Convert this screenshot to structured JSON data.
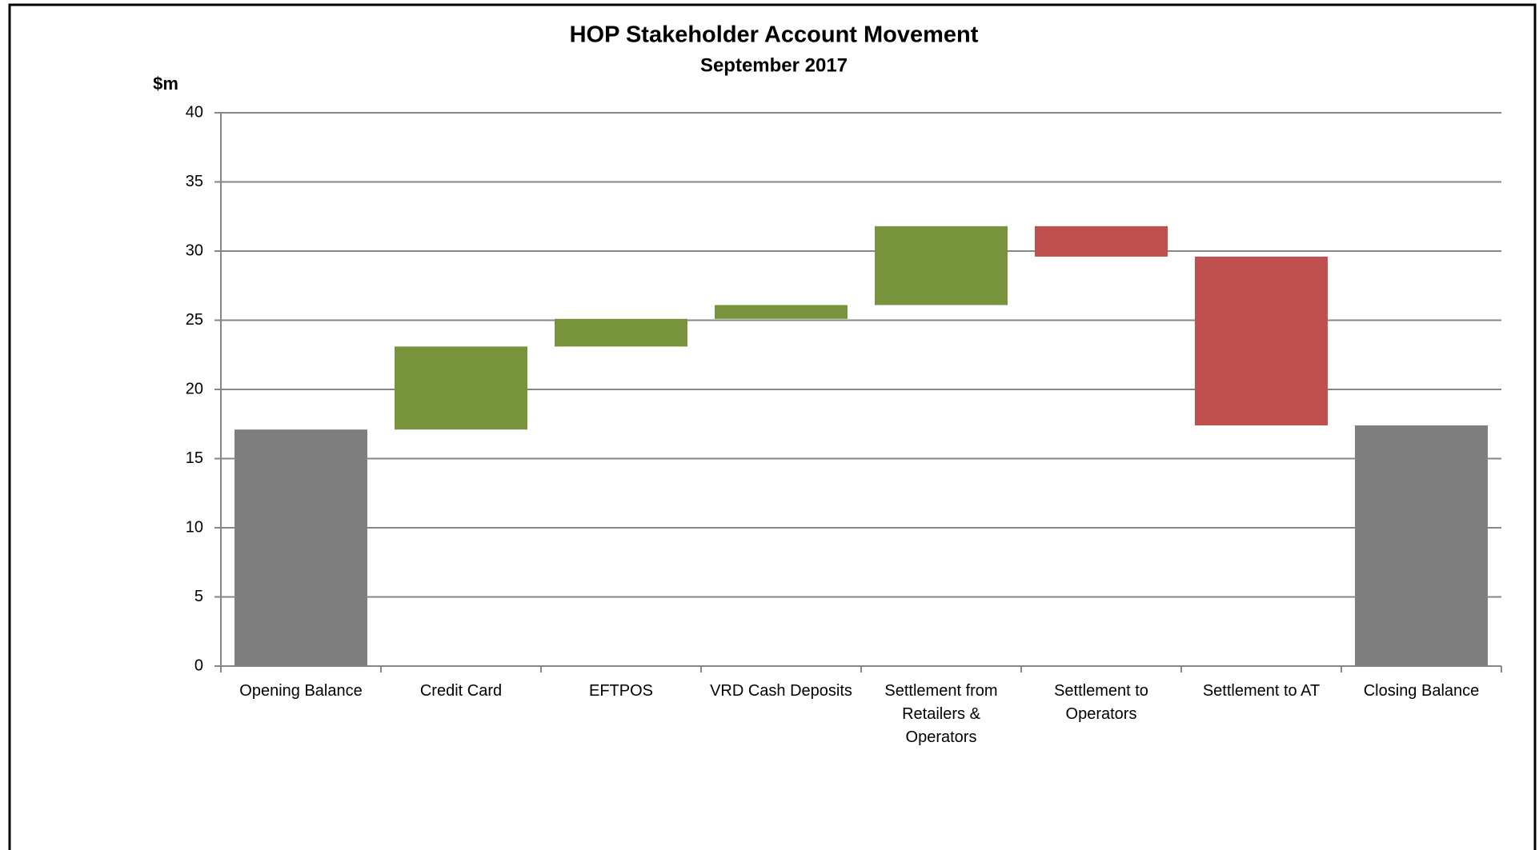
{
  "chart_data": {
    "type": "waterfall",
    "title": "HOP Stakeholder Account Movement",
    "subtitle": "September 2017",
    "y_label": "$m",
    "categories": [
      "Opening Balance",
      "Credit Card",
      "EFTPOS",
      "VRD Cash Deposits",
      "Settlement from Retailers & Operators",
      "Settlement to Operators",
      "Settlement to AT",
      "Closing Balance"
    ],
    "values": [
      17.1,
      6.0,
      2.0,
      1.0,
      5.7,
      -2.2,
      -12.2,
      17.4
    ],
    "is_total": [
      true,
      false,
      false,
      false,
      false,
      false,
      false,
      true
    ],
    "total_color": "#7f7f7f",
    "increase_color": "#77933c",
    "decrease_color": "#c0504d",
    "ylim": [
      0,
      40
    ],
    "yticks": [
      0,
      5,
      10,
      15,
      20,
      25,
      30,
      35,
      40
    ],
    "grid": true
  }
}
